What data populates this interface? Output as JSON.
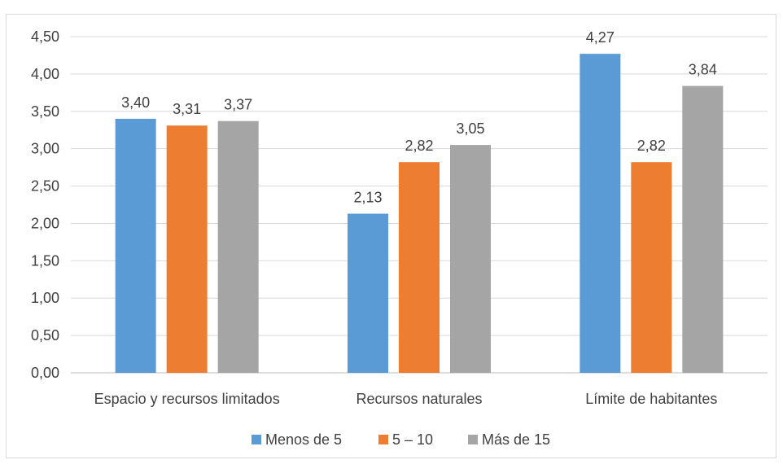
{
  "chart_data": {
    "type": "bar",
    "categories": [
      "Espacio y recursos limitados",
      "Recursos naturales",
      "Límite de habitantes"
    ],
    "series": [
      {
        "name": "Menos de 5",
        "color": "#5b9bd5",
        "values": [
          3.4,
          2.13,
          4.27
        ]
      },
      {
        "name": "5 – 10",
        "color": "#ed7d31",
        "values": [
          3.31,
          2.82,
          2.82
        ]
      },
      {
        "name": "Más de 15",
        "color": "#a5a5a5",
        "values": [
          3.37,
          3.05,
          3.84
        ]
      }
    ],
    "ylim": [
      0,
      4.5
    ],
    "y_ticks": [
      0,
      0.5,
      1.0,
      1.5,
      2.0,
      2.5,
      3.0,
      3.5,
      4.0,
      4.5
    ],
    "decimal_separator": ",",
    "grid": true,
    "legend_position": "bottom",
    "title": "",
    "xlabel": "",
    "ylabel": ""
  }
}
